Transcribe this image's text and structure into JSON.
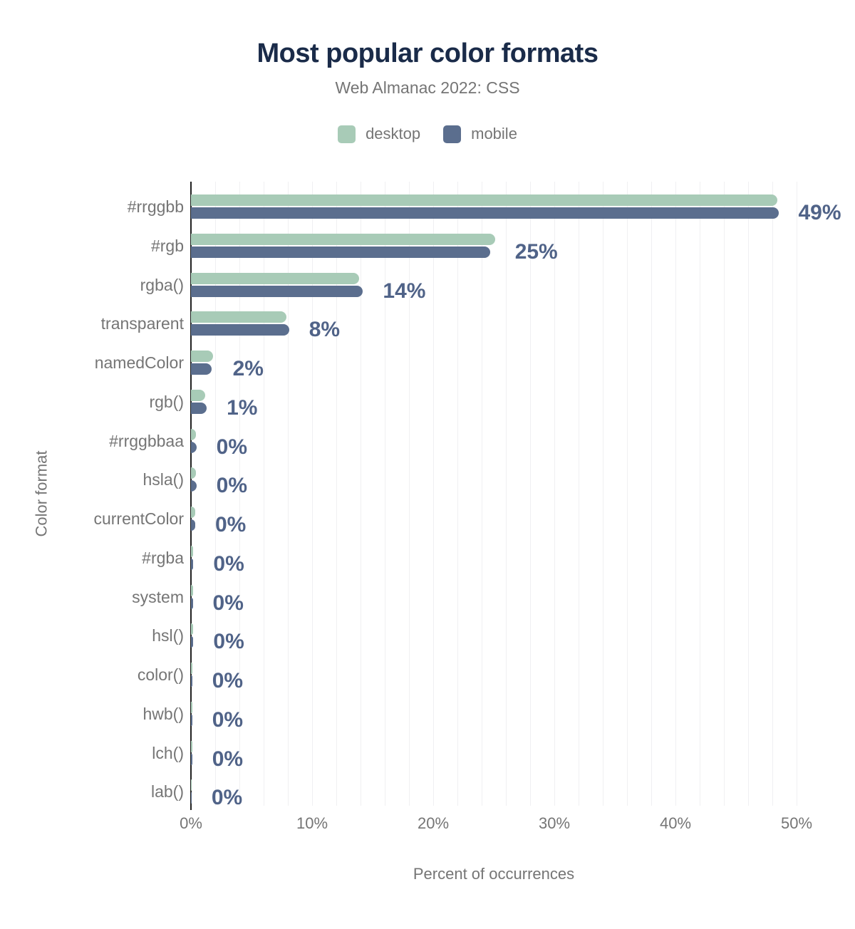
{
  "chart_data": {
    "type": "bar",
    "orientation": "horizontal",
    "title": "Most popular color formats",
    "subtitle": "Web Almanac 2022: CSS",
    "xlabel": "Percent of occurrences",
    "ylabel": "Color format",
    "xlim": [
      0,
      50
    ],
    "x_tick_labels": [
      "0%",
      "10%",
      "20%",
      "30%",
      "40%",
      "50%"
    ],
    "grid": "vertical, every 2%",
    "legend_position": "top",
    "categories": [
      "#rrggbb",
      "#rgb",
      "rgba()",
      "transparent",
      "namedColor",
      "rgb()",
      "#rrggbbaa",
      "hsla()",
      "currentColor",
      "#rgba",
      "system",
      "hsl()",
      "color()",
      "hwb()",
      "lch()",
      "lab()"
    ],
    "series": [
      {
        "name": "desktop",
        "color": "#a8cbb7",
        "values": [
          48.4,
          25.1,
          13.9,
          7.9,
          1.8,
          1.2,
          0.4,
          0.4,
          0.35,
          0.2,
          0.15,
          0.2,
          0.1,
          0.1,
          0.1,
          0.05
        ]
      },
      {
        "name": "mobile",
        "color": "#5b6e8e",
        "values": [
          48.5,
          24.7,
          14.2,
          8.1,
          1.7,
          1.3,
          0.45,
          0.45,
          0.35,
          0.2,
          0.15,
          0.2,
          0.1,
          0.1,
          0.1,
          0.05
        ]
      }
    ],
    "value_labels": [
      "49%",
      "25%",
      "14%",
      "8%",
      "2%",
      "1%",
      "0%",
      "0%",
      "0%",
      "0%",
      "0%",
      "0%",
      "0%",
      "0%",
      "0%",
      "0%"
    ]
  },
  "colors": {
    "title": "#1a2b49",
    "muted_text": "#757575",
    "value_label": "#506388",
    "gridline": "#f0f0f2",
    "axis": "#212121",
    "desktop": "#a8cbb7",
    "mobile": "#5b6e8e"
  }
}
